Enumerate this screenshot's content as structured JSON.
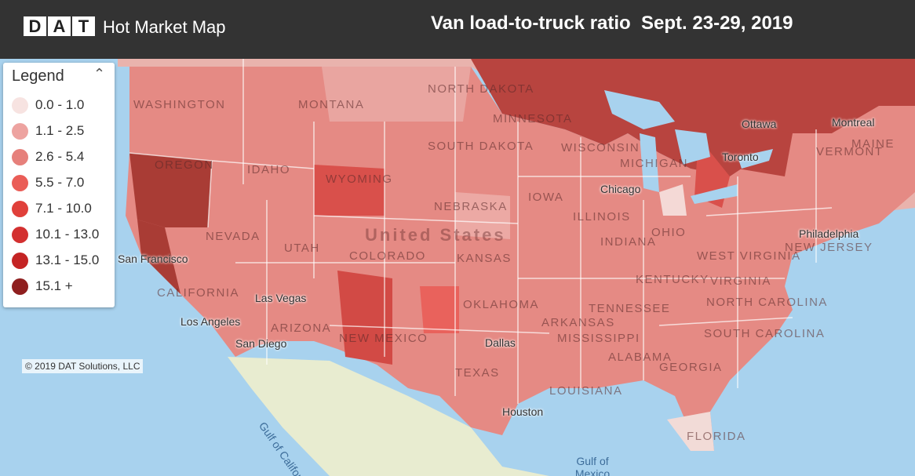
{
  "header": {
    "logo_letters": [
      "D",
      "A",
      "T"
    ],
    "app_title": "Hot Market Map",
    "map_title": "Van load-to-truck ratio  Sept. 23-29, 2019"
  },
  "legend": {
    "title": "Legend",
    "toggle_icon": "chevron-up-icon",
    "items": [
      {
        "label": "0.0 - 1.0",
        "color": "#f7e3e1"
      },
      {
        "label": "1.1 - 2.5",
        "color": "#eda3a0"
      },
      {
        "label": "2.6 - 5.4",
        "color": "#e6807b"
      },
      {
        "label": "5.5 - 7.0",
        "color": "#ea5d57"
      },
      {
        "label": "7.1 - 10.0",
        "color": "#e0403a"
      },
      {
        "label": "10.1 - 13.0",
        "color": "#d33030"
      },
      {
        "label": "13.1 - 15.0",
        "color": "#c42424"
      },
      {
        "label": "15.1 +",
        "color": "#8f1f1f"
      }
    ]
  },
  "map": {
    "state_labels": [
      "Washington",
      "Montana",
      "North Dakota",
      "Minnesota",
      "Wisconsin",
      "South Dakota",
      "Idaho",
      "Oregon",
      "Wyoming",
      "Michigan",
      "Nebraska",
      "Iowa",
      "Nevada",
      "Utah",
      "Colorado",
      "Kansas",
      "Illinois",
      "California",
      "Arizona",
      "New Mexico",
      "Oklahoma",
      "Arkansas",
      "Mississippi",
      "Alabama",
      "Texas",
      "Louisiana",
      "Tennessee",
      "Kentucky",
      "Virginia",
      "West Virginia",
      "North Carolina",
      "South Carolina",
      "Georgia",
      "Florida",
      "Indiana",
      "Ohio",
      "Maine",
      "Vermont",
      "New Jersey"
    ],
    "city_labels": [
      "San Francisco",
      "Las Vegas",
      "Los Angeles",
      "San Diego",
      "Dallas",
      "Houston",
      "Chicago",
      "Toronto",
      "Ottawa",
      "Montreal",
      "Philadelphia"
    ],
    "country_label": "United States",
    "water_labels": [
      "Gulf of California",
      "Gulf of Mexico"
    ],
    "copyright": "© 2019 DAT Solutions, LLC"
  }
}
